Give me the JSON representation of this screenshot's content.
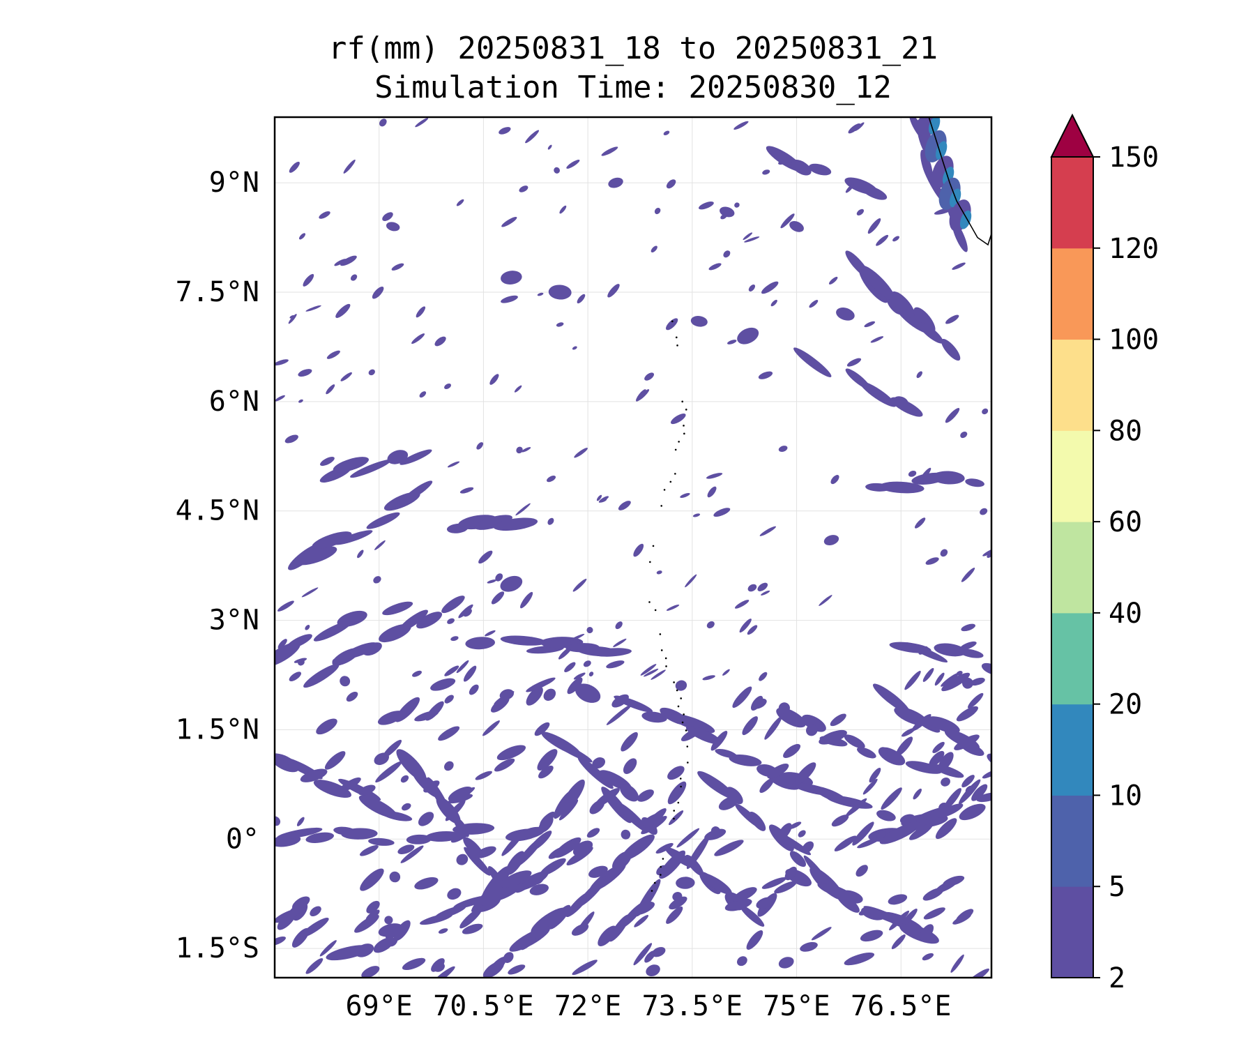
{
  "chart_data": {
    "type": "heatmap",
    "title": "rf(mm) 20250831_18 to 20250831_21",
    "subtitle": "Simulation Time: 20250830_12",
    "xlabel": "",
    "ylabel": "",
    "xlim": [
      67.5,
      77.8
    ],
    "ylim": [
      -1.9,
      9.9
    ],
    "x_ticks": [
      69,
      70.5,
      72,
      73.5,
      75,
      76.5
    ],
    "x_tick_labels": [
      "69°E",
      "70.5°E",
      "72°E",
      "73.5°E",
      "75°E",
      "76.5°E"
    ],
    "y_ticks": [
      9,
      7.5,
      6,
      4.5,
      3,
      1.5,
      0,
      -1.5
    ],
    "y_tick_labels": [
      "9°N",
      "7.5°N",
      "6°N",
      "4.5°N",
      "3°N",
      "1.5°N",
      "0°",
      "1.5°S"
    ],
    "grid": true,
    "colorbar": {
      "levels": [
        2,
        5,
        10,
        20,
        40,
        60,
        80,
        100,
        120,
        150
      ],
      "labels": [
        "2",
        "5",
        "10",
        "20",
        "40",
        "60",
        "80",
        "100",
        "120",
        "150"
      ],
      "colors": [
        "#5e4fa2",
        "#4e62ab",
        "#3288bd",
        "#66c2a5",
        "#bfe5a0",
        "#f3faad",
        "#fddf8b",
        "#f99858",
        "#d53e4f",
        "#9e0142"
      ],
      "extend": "max"
    },
    "rain_bands": [
      {
        "lon1": 67.6,
        "lat1": 2.6,
        "lon2": 69.2,
        "lat2": 3.2
      },
      {
        "lon1": 67.6,
        "lat1": 3.7,
        "lon2": 69.6,
        "lat2": 4.7
      },
      {
        "lon1": 68.2,
        "lat1": 2.3,
        "lon2": 70.0,
        "lat2": 3.2
      },
      {
        "lon1": 70.5,
        "lat1": 2.7,
        "lon2": 72.4,
        "lat2": 2.6
      },
      {
        "lon1": 67.6,
        "lat1": 0.0,
        "lon2": 71.0,
        "lat2": 0.1
      },
      {
        "lon1": 68.5,
        "lat1": -1.6,
        "lon2": 72.0,
        "lat2": -0.2
      },
      {
        "lon1": 70.2,
        "lat1": -1.2,
        "lon2": 71.8,
        "lat2": 0.6
      },
      {
        "lon1": 71.0,
        "lat1": -1.5,
        "lon2": 72.7,
        "lat2": -0.2
      },
      {
        "lon1": 72.3,
        "lat1": -1.4,
        "lon2": 73.5,
        "lat2": -0.1
      },
      {
        "lon1": 72.5,
        "lat1": 0.5,
        "lon2": 74.5,
        "lat2": -1.2
      },
      {
        "lon1": 73.9,
        "lat1": 0.7,
        "lon2": 75.7,
        "lat2": -0.8
      },
      {
        "lon1": 74.0,
        "lat1": 1.1,
        "lon2": 76.3,
        "lat2": 0.4
      },
      {
        "lon1": 75.0,
        "lat1": 1.6,
        "lon2": 77.1,
        "lat2": 0.9
      },
      {
        "lon1": 76.4,
        "lat1": 1.9,
        "lon2": 77.8,
        "lat2": 1.1
      },
      {
        "lon1": 76.0,
        "lat1": 0.0,
        "lon2": 77.8,
        "lat2": 0.5
      },
      {
        "lon1": 72.6,
        "lat1": 1.8,
        "lon2": 74.6,
        "lat2": 1.2
      },
      {
        "lon1": 76.7,
        "lat1": 9.8,
        "lon2": 77.4,
        "lat2": 8.3
      },
      {
        "lon1": 75.5,
        "lat1": 8.2,
        "lon2": 76.6,
        "lat2": 7.2
      },
      {
        "lon1": 75.9,
        "lat1": 7.9,
        "lon2": 77.2,
        "lat2": 6.7
      },
      {
        "lon1": 74.9,
        "lat1": 9.3,
        "lon2": 76.1,
        "lat2": 8.8
      },
      {
        "lon1": 75.3,
        "lat1": 6.6,
        "lon2": 76.6,
        "lat2": 5.9
      },
      {
        "lon1": 68.4,
        "lat1": 5.0,
        "lon2": 69.5,
        "lat2": 5.3
      },
      {
        "lon1": 70.2,
        "lat1": 4.3,
        "lon2": 70.9,
        "lat2": 4.4
      },
      {
        "lon1": 76.2,
        "lat1": 4.9,
        "lon2": 77.5,
        "lat2": 4.9
      },
      {
        "lon1": 67.6,
        "lat1": 1.0,
        "lon2": 69.5,
        "lat2": 0.3
      },
      {
        "lon1": 69.5,
        "lat1": 1.0,
        "lon2": 70.6,
        "lat2": -0.5
      },
      {
        "lon1": 74.5,
        "lat1": -0.3,
        "lon2": 76.8,
        "lat2": -1.3
      },
      {
        "lon1": 76.6,
        "lat1": 2.7,
        "lon2": 77.8,
        "lat2": 2.4
      },
      {
        "lon1": 71.6,
        "lat1": 1.3,
        "lon2": 72.6,
        "lat2": 0.6
      }
    ],
    "rain_cells": [
      {
        "lon": 72.0,
        "lat": 2.0,
        "size": 0.35
      },
      {
        "lon": 71.6,
        "lat": 7.5,
        "size": 0.3
      },
      {
        "lon": 70.9,
        "lat": 3.5,
        "size": 0.3
      },
      {
        "lon": 74.3,
        "lat": 6.9,
        "size": 0.3
      },
      {
        "lon": 73.6,
        "lat": 7.1,
        "size": 0.22
      },
      {
        "lon": 75.7,
        "lat": 7.2,
        "size": 0.25
      },
      {
        "lon": 70.9,
        "lat": 7.7,
        "size": 0.28
      },
      {
        "lon": 72.4,
        "lat": 9.0,
        "size": 0.2
      },
      {
        "lon": 75.0,
        "lat": 8.4,
        "size": 0.2
      },
      {
        "lon": 74.0,
        "lat": 8.6,
        "size": 0.2
      },
      {
        "lon": 69.2,
        "lat": 8.4,
        "size": 0.18
      },
      {
        "lon": 73.4,
        "lat": -0.6,
        "size": 0.25
      },
      {
        "lon": 76.5,
        "lat": 6.0,
        "size": 0.2
      },
      {
        "lon": 75.5,
        "lat": 4.1,
        "size": 0.2
      }
    ],
    "coastline": [
      [
        76.9,
        9.9
      ],
      [
        77.0,
        9.6
      ],
      [
        77.1,
        9.3
      ],
      [
        77.2,
        9.0
      ],
      [
        77.3,
        8.75
      ],
      [
        77.45,
        8.5
      ],
      [
        77.6,
        8.25
      ],
      [
        77.75,
        8.15
      ],
      [
        77.8,
        8.3
      ]
    ]
  }
}
